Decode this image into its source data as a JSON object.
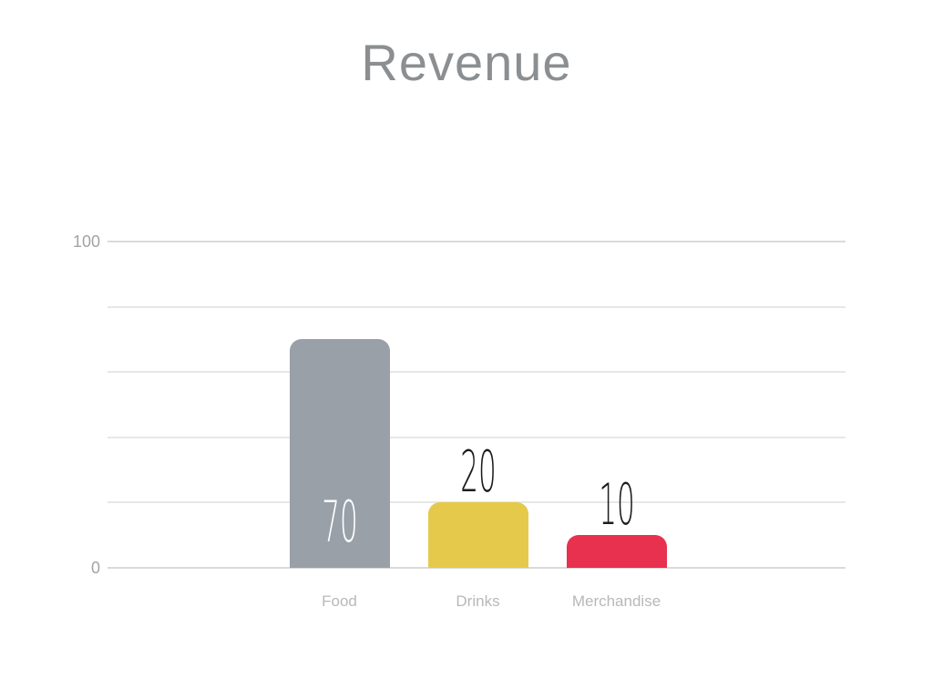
{
  "page": {
    "background": "#ffffff"
  },
  "chart_data": {
    "type": "bar",
    "title": "Revenue",
    "title_color": "#8b8f91",
    "categories": [
      "Food",
      "Drinks",
      "Merchandise"
    ],
    "values": [
      70,
      20,
      10
    ],
    "value_labels": [
      "70",
      "20",
      "10"
    ],
    "bar_colors": [
      "#9aa0a8",
      "#e5c94b",
      "#e8304f"
    ],
    "value_label_colors": [
      "#ffffff",
      "#1c1c1c",
      "#1c1c1c"
    ],
    "value_label_placement": [
      "inside",
      "above",
      "above"
    ],
    "xlabel": "",
    "ylabel": "",
    "ylim": [
      0,
      100
    ],
    "gridline_values": [
      0,
      20,
      40,
      60,
      80,
      100
    ],
    "y_ticks_shown": [
      {
        "value": 0,
        "label": "0"
      },
      {
        "value": 100,
        "label": "100"
      }
    ],
    "grid": true,
    "legend_position": "none",
    "axis_text_color": "#a3a3a3",
    "category_text_color": "#b8b8b8",
    "gridline_color": "#e7e7e7",
    "edge_gridline_color": "#dadada"
  }
}
